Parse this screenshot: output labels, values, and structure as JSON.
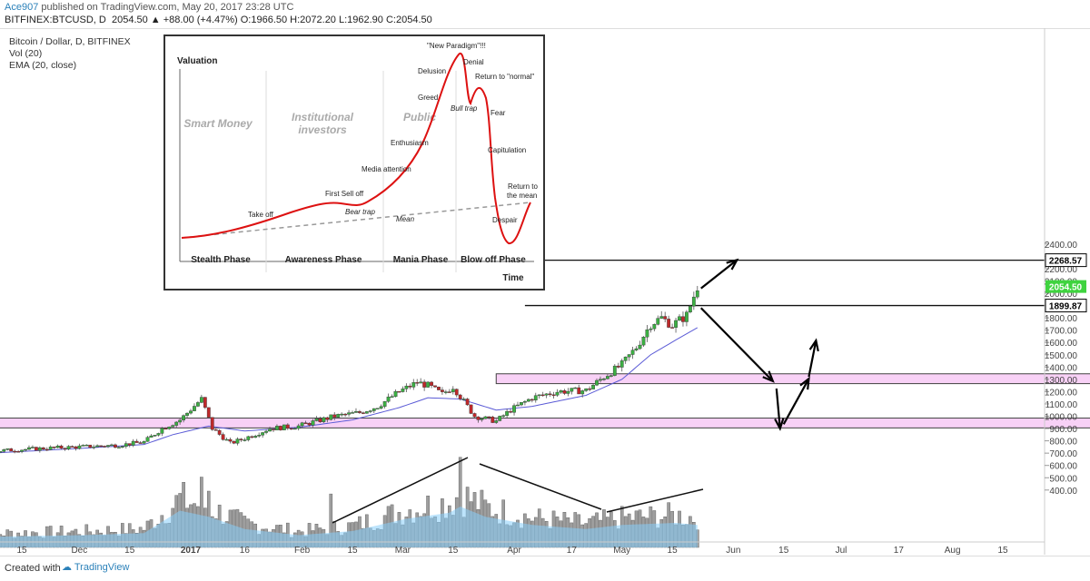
{
  "header": {
    "author": "Ace907",
    "published": "published on TradingView.com, May 20, 2017 23:28 UTC",
    "symbol": "BITFINEX:BTCUSD, D",
    "ohlc_values": "2054.50 ▲ +88.00 (+4.47%) O:1966.50 H:2072.20 L:1962.90 C:2054.50"
  },
  "legend": {
    "title": "Bitcoin / Dollar, D, BITFINEX",
    "vol": "Vol (20)",
    "ema": "EMA (20, close)"
  },
  "footer": {
    "created": "Created with",
    "brand": "TradingView"
  },
  "colors": {
    "up": "#3cb043",
    "down": "#c0282a",
    "volume": "#9e9e9e",
    "vol_ma": "#87cefa",
    "ema": "#5b5bd6",
    "zone": "#f7c9f5",
    "label_dark": "#000000",
    "label_green": "#3fd33f"
  },
  "chart_data": {
    "type": "candlestick",
    "title": "Bitcoin / Dollar, D, BITFINEX",
    "y_axis": {
      "range": [
        400,
        2450
      ],
      "ticks": [
        400,
        500,
        600,
        700,
        800,
        900,
        1000,
        1100,
        1200,
        1300,
        1400,
        1500,
        1600,
        1700,
        1800,
        1900,
        2000,
        2100,
        2200,
        2300,
        2400
      ],
      "tick_labels": [
        "400.00",
        "500.00",
        "600.00",
        "700.00",
        "800.00",
        "900.00",
        "1000.00",
        "1100.00",
        "1200.00",
        "1300.00",
        "1400.00",
        "1500.00",
        "1600.00",
        "1700.00",
        "1800.00",
        "1900.00",
        "2000.00",
        "2100.00",
        "2200.00",
        "2300.00",
        "2400.00"
      ]
    },
    "x_axis": {
      "tick_labels": [
        "15",
        "Dec",
        "15",
        "2017",
        "16",
        "Feb",
        "15",
        "Mar",
        "15",
        "Apr",
        "17",
        "May",
        "15",
        "Jun",
        "15",
        "Jul",
        "17",
        "Aug",
        "15"
      ],
      "tick_days": [
        -47,
        -31,
        -17,
        0,
        15,
        31,
        45,
        59,
        73,
        90,
        106,
        120,
        134,
        151,
        165,
        181,
        197,
        212,
        226
      ]
    },
    "grid": false,
    "price_labels": [
      {
        "text": "2268.57",
        "value": 2268.57,
        "style": "dark"
      },
      {
        "text": "2054.50",
        "value": 2054.5,
        "style": "green"
      },
      {
        "text": "1899.87",
        "value": 1899.87,
        "style": "dark"
      }
    ],
    "horizontal_lines": [
      2268.57,
      1899.87
    ],
    "zones": [
      {
        "from_day": 85,
        "to_day": 310,
        "low": 1265,
        "high": 1345
      },
      {
        "from_day": -95,
        "to_day": 310,
        "low": 905,
        "high": 985
      }
    ],
    "price_path": [
      {
        "day": -62,
        "price": 700
      },
      {
        "day": -50,
        "price": 725
      },
      {
        "day": -40,
        "price": 740
      },
      {
        "day": -30,
        "price": 752
      },
      {
        "day": -20,
        "price": 765
      },
      {
        "day": -13,
        "price": 790
      },
      {
        "day": -8,
        "price": 900
      },
      {
        "day": -3,
        "price": 970
      },
      {
        "day": 3,
        "price": 1140
      },
      {
        "day": 6,
        "price": 900
      },
      {
        "day": 11,
        "price": 780
      },
      {
        "day": 15,
        "price": 820
      },
      {
        "day": 22,
        "price": 900
      },
      {
        "day": 30,
        "price": 920
      },
      {
        "day": 40,
        "price": 1000
      },
      {
        "day": 47,
        "price": 1030
      },
      {
        "day": 52,
        "price": 1080
      },
      {
        "day": 58,
        "price": 1200
      },
      {
        "day": 63,
        "price": 1275
      },
      {
        "day": 66,
        "price": 1250
      },
      {
        "day": 70,
        "price": 1180
      },
      {
        "day": 73,
        "price": 1240
      },
      {
        "day": 76,
        "price": 1120
      },
      {
        "day": 79,
        "price": 1000
      },
      {
        "day": 85,
        "price": 960
      },
      {
        "day": 89,
        "price": 1050
      },
      {
        "day": 95,
        "price": 1150
      },
      {
        "day": 102,
        "price": 1200
      },
      {
        "day": 110,
        "price": 1210
      },
      {
        "day": 115,
        "price": 1320
      },
      {
        "day": 120,
        "price": 1420
      },
      {
        "day": 124,
        "price": 1560
      },
      {
        "day": 128,
        "price": 1750
      },
      {
        "day": 131,
        "price": 1800
      },
      {
        "day": 134,
        "price": 1740
      },
      {
        "day": 138,
        "price": 1820
      },
      {
        "day": 141,
        "price": 2054
      }
    ],
    "ema_path": [
      {
        "day": -62,
        "price": 690
      },
      {
        "day": -30,
        "price": 740
      },
      {
        "day": -13,
        "price": 770
      },
      {
        "day": -5,
        "price": 850
      },
      {
        "day": 5,
        "price": 920
      },
      {
        "day": 15,
        "price": 880
      },
      {
        "day": 30,
        "price": 910
      },
      {
        "day": 45,
        "price": 970
      },
      {
        "day": 58,
        "price": 1070
      },
      {
        "day": 66,
        "price": 1150
      },
      {
        "day": 75,
        "price": 1140
      },
      {
        "day": 85,
        "price": 1050
      },
      {
        "day": 95,
        "price": 1080
      },
      {
        "day": 110,
        "price": 1170
      },
      {
        "day": 120,
        "price": 1300
      },
      {
        "day": 128,
        "price": 1500
      },
      {
        "day": 135,
        "price": 1620
      },
      {
        "day": 141,
        "price": 1720
      }
    ],
    "volume_profile": [
      {
        "day": -62,
        "v": 0.25
      },
      {
        "day": -30,
        "v": 0.3
      },
      {
        "day": -13,
        "v": 0.35
      },
      {
        "day": -3,
        "v": 0.9
      },
      {
        "day": 5,
        "v": 0.75
      },
      {
        "day": 15,
        "v": 0.45
      },
      {
        "day": 30,
        "v": 0.3
      },
      {
        "day": 45,
        "v": 0.4
      },
      {
        "day": 60,
        "v": 0.7
      },
      {
        "day": 72,
        "v": 0.85
      },
      {
        "day": 75,
        "v": 1.0
      },
      {
        "day": 82,
        "v": 0.75
      },
      {
        "day": 95,
        "v": 0.55
      },
      {
        "day": 110,
        "v": 0.45
      },
      {
        "day": 120,
        "v": 0.55
      },
      {
        "day": 135,
        "v": 0.6
      },
      {
        "day": 141,
        "v": 0.55
      }
    ],
    "projection_arrows": [
      {
        "from": {
          "day": 142,
          "price": 2040
        },
        "to": {
          "day": 152,
          "price": 2270
        }
      },
      {
        "from": {
          "day": 142,
          "price": 1880
        },
        "to": {
          "day": 162,
          "price": 1285
        }
      },
      {
        "from": {
          "day": 163,
          "price": 1225
        },
        "to": {
          "day": 164,
          "price": 900
        }
      },
      {
        "from": {
          "day": 165,
          "price": 935
        },
        "to": {
          "day": 172,
          "price": 1305
        }
      },
      {
        "from": {
          "day": 172,
          "price": 1320
        },
        "to": {
          "day": 174,
          "price": 1615
        }
      }
    ]
  },
  "inset": {
    "ylabel": "Valuation",
    "xlabel": "Time",
    "phases": [
      "Stealth Phase",
      "Awareness Phase",
      "Mania Phase",
      "Blow off Phase"
    ],
    "phase_titles": [
      "Smart Money",
      "Institutional investors",
      "Public"
    ],
    "annotations": [
      "Take off",
      "First Sell off",
      "Bear trap",
      "Media attention",
      "Enthusiasm",
      "Greed",
      "Delusion",
      "\"New Paradigm\"!!!",
      "Denial",
      "Return to \"normal\"",
      "Bull trap",
      "Fear",
      "Capitulation",
      "Despair",
      "Return to the mean",
      "Mean"
    ]
  }
}
